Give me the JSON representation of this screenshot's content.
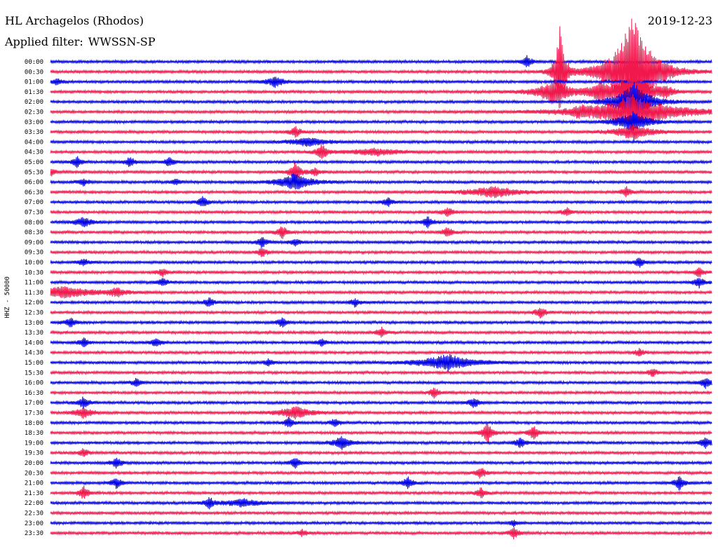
{
  "header": {
    "station": "HL Archagelos (Rhodos)",
    "filter_label": "Applied filter:",
    "filter_value": "WWSSN-SP",
    "date": "2019-12-23"
  },
  "chart_data": {
    "type": "line",
    "subtype": "helicorder",
    "ylabel": "HHZ - 50000",
    "row_labels": [
      "00:00",
      "00:30",
      "01:00",
      "01:30",
      "02:00",
      "02:30",
      "03:00",
      "03:30",
      "04:00",
      "04:30",
      "05:00",
      "05:30",
      "06:00",
      "06:30",
      "07:00",
      "07:30",
      "08:00",
      "08:30",
      "09:00",
      "09:30",
      "10:00",
      "10:30",
      "11:00",
      "11:30",
      "12:00",
      "12:30",
      "13:00",
      "13:30",
      "14:00",
      "14:30",
      "15:00",
      "15:30",
      "16:00",
      "16:30",
      "17:00",
      "17:30",
      "18:00",
      "18:30",
      "19:00",
      "19:30",
      "20:00",
      "20:30",
      "21:00",
      "21:30",
      "22:00",
      "22:30",
      "23:00",
      "23:30"
    ],
    "trace_colors": [
      "#0000e6",
      "#f0184c"
    ],
    "grid": false,
    "noise_amplitude": 2.2,
    "events": [
      {
        "row": 0,
        "t": 0.72,
        "amp": 9,
        "dur": 0.006
      },
      {
        "row": 1,
        "t": 0.77,
        "amp": 70,
        "dur": 0.006
      },
      {
        "row": 1,
        "t": 0.88,
        "amp": 85,
        "dur": 0.025
      },
      {
        "row": 2,
        "t": 0.34,
        "amp": 8,
        "dur": 0.01
      },
      {
        "row": 2,
        "t": 0.01,
        "amp": 5,
        "dur": 0.006
      },
      {
        "row": 3,
        "t": 0.76,
        "amp": 18,
        "dur": 0.02
      },
      {
        "row": 3,
        "t": 0.83,
        "amp": 12,
        "dur": 0.012
      },
      {
        "row": 3,
        "t": 0.88,
        "amp": 30,
        "dur": 0.02
      },
      {
        "row": 3,
        "t": 0.93,
        "amp": 6,
        "dur": 0.01
      },
      {
        "row": 4,
        "t": 0.88,
        "amp": 30,
        "dur": 0.02
      },
      {
        "row": 5,
        "t": 0.88,
        "amp": 24,
        "dur": 0.05
      },
      {
        "row": 5,
        "t": 0.8,
        "amp": 6,
        "dur": 0.008
      },
      {
        "row": 6,
        "t": 0.88,
        "amp": 14,
        "dur": 0.02
      },
      {
        "row": 7,
        "t": 0.37,
        "amp": 8,
        "dur": 0.006
      },
      {
        "row": 7,
        "t": 0.88,
        "amp": 12,
        "dur": 0.02
      },
      {
        "row": 8,
        "t": 0.39,
        "amp": 7,
        "dur": 0.02
      },
      {
        "row": 9,
        "t": 0.41,
        "amp": 12,
        "dur": 0.006
      },
      {
        "row": 9,
        "t": 0.49,
        "amp": 5,
        "dur": 0.03
      },
      {
        "row": 10,
        "t": 0.04,
        "amp": 8,
        "dur": 0.006
      },
      {
        "row": 10,
        "t": 0.12,
        "amp": 7,
        "dur": 0.006
      },
      {
        "row": 10,
        "t": 0.18,
        "amp": 7,
        "dur": 0.006
      },
      {
        "row": 11,
        "t": 0.0,
        "amp": 6,
        "dur": 0.006
      },
      {
        "row": 11,
        "t": 0.37,
        "amp": 16,
        "dur": 0.006
      },
      {
        "row": 11,
        "t": 0.4,
        "amp": 6,
        "dur": 0.006
      },
      {
        "row": 12,
        "t": 0.37,
        "amp": 12,
        "dur": 0.02
      },
      {
        "row": 12,
        "t": 0.05,
        "amp": 5,
        "dur": 0.006
      },
      {
        "row": 12,
        "t": 0.19,
        "amp": 5,
        "dur": 0.006
      },
      {
        "row": 13,
        "t": 0.67,
        "amp": 8,
        "dur": 0.03
      },
      {
        "row": 13,
        "t": 0.87,
        "amp": 7,
        "dur": 0.006
      },
      {
        "row": 14,
        "t": 0.23,
        "amp": 8,
        "dur": 0.006
      },
      {
        "row": 14,
        "t": 0.51,
        "amp": 6,
        "dur": 0.006
      },
      {
        "row": 15,
        "t": 0.6,
        "amp": 7,
        "dur": 0.006
      },
      {
        "row": 15,
        "t": 0.78,
        "amp": 6,
        "dur": 0.006
      },
      {
        "row": 16,
        "t": 0.05,
        "amp": 7,
        "dur": 0.01
      },
      {
        "row": 16,
        "t": 0.57,
        "amp": 8,
        "dur": 0.006
      },
      {
        "row": 17,
        "t": 0.6,
        "amp": 8,
        "dur": 0.006
      },
      {
        "row": 17,
        "t": 0.35,
        "amp": 9,
        "dur": 0.006
      },
      {
        "row": 18,
        "t": 0.32,
        "amp": 8,
        "dur": 0.006
      },
      {
        "row": 18,
        "t": 0.37,
        "amp": 6,
        "dur": 0.006
      },
      {
        "row": 19,
        "t": 0.32,
        "amp": 7,
        "dur": 0.006
      },
      {
        "row": 20,
        "t": 0.05,
        "amp": 6,
        "dur": 0.006
      },
      {
        "row": 20,
        "t": 0.89,
        "amp": 7,
        "dur": 0.006
      },
      {
        "row": 21,
        "t": 0.17,
        "amp": 6,
        "dur": 0.006
      },
      {
        "row": 21,
        "t": 0.98,
        "amp": 7,
        "dur": 0.006
      },
      {
        "row": 22,
        "t": 0.17,
        "amp": 7,
        "dur": 0.006
      },
      {
        "row": 22,
        "t": 0.98,
        "amp": 8,
        "dur": 0.006
      },
      {
        "row": 23,
        "t": 0.02,
        "amp": 8,
        "dur": 0.04
      },
      {
        "row": 23,
        "t": 0.1,
        "amp": 6,
        "dur": 0.01
      },
      {
        "row": 24,
        "t": 0.24,
        "amp": 7,
        "dur": 0.006
      },
      {
        "row": 24,
        "t": 0.46,
        "amp": 6,
        "dur": 0.006
      },
      {
        "row": 25,
        "t": 0.74,
        "amp": 9,
        "dur": 0.006
      },
      {
        "row": 26,
        "t": 0.03,
        "amp": 7,
        "dur": 0.006
      },
      {
        "row": 26,
        "t": 0.35,
        "amp": 7,
        "dur": 0.006
      },
      {
        "row": 27,
        "t": 0.5,
        "amp": 7,
        "dur": 0.006
      },
      {
        "row": 28,
        "t": 0.05,
        "amp": 7,
        "dur": 0.006
      },
      {
        "row": 28,
        "t": 0.16,
        "amp": 7,
        "dur": 0.006
      },
      {
        "row": 28,
        "t": 0.41,
        "amp": 5,
        "dur": 0.006
      },
      {
        "row": 29,
        "t": 0.89,
        "amp": 5,
        "dur": 0.006
      },
      {
        "row": 30,
        "t": 0.6,
        "amp": 12,
        "dur": 0.03
      },
      {
        "row": 30,
        "t": 0.33,
        "amp": 5,
        "dur": 0.006
      },
      {
        "row": 31,
        "t": 0.91,
        "amp": 6,
        "dur": 0.006
      },
      {
        "row": 32,
        "t": 0.13,
        "amp": 6,
        "dur": 0.006
      },
      {
        "row": 32,
        "t": 0.99,
        "amp": 8,
        "dur": 0.006
      },
      {
        "row": 33,
        "t": 0.58,
        "amp": 7,
        "dur": 0.006
      },
      {
        "row": 34,
        "t": 0.05,
        "amp": 9,
        "dur": 0.006
      },
      {
        "row": 34,
        "t": 0.64,
        "amp": 8,
        "dur": 0.006
      },
      {
        "row": 35,
        "t": 0.05,
        "amp": 8,
        "dur": 0.01
      },
      {
        "row": 35,
        "t": 0.37,
        "amp": 9,
        "dur": 0.02
      },
      {
        "row": 36,
        "t": 0.36,
        "amp": 7,
        "dur": 0.006
      },
      {
        "row": 36,
        "t": 0.43,
        "amp": 6,
        "dur": 0.006
      },
      {
        "row": 37,
        "t": 0.66,
        "amp": 16,
        "dur": 0.006
      },
      {
        "row": 37,
        "t": 0.73,
        "amp": 10,
        "dur": 0.006
      },
      {
        "row": 38,
        "t": 0.44,
        "amp": 10,
        "dur": 0.01
      },
      {
        "row": 38,
        "t": 0.71,
        "amp": 8,
        "dur": 0.006
      },
      {
        "row": 38,
        "t": 0.99,
        "amp": 9,
        "dur": 0.006
      },
      {
        "row": 39,
        "t": 0.05,
        "amp": 6,
        "dur": 0.006
      },
      {
        "row": 40,
        "t": 0.1,
        "amp": 8,
        "dur": 0.006
      },
      {
        "row": 40,
        "t": 0.37,
        "amp": 8,
        "dur": 0.006
      },
      {
        "row": 41,
        "t": 0.65,
        "amp": 9,
        "dur": 0.006
      },
      {
        "row": 42,
        "t": 0.1,
        "amp": 8,
        "dur": 0.006
      },
      {
        "row": 42,
        "t": 0.54,
        "amp": 9,
        "dur": 0.006
      },
      {
        "row": 42,
        "t": 0.95,
        "amp": 10,
        "dur": 0.006
      },
      {
        "row": 43,
        "t": 0.05,
        "amp": 10,
        "dur": 0.006
      },
      {
        "row": 43,
        "t": 0.65,
        "amp": 8,
        "dur": 0.006
      },
      {
        "row": 44,
        "t": 0.24,
        "amp": 8,
        "dur": 0.006
      },
      {
        "row": 44,
        "t": 0.29,
        "amp": 6,
        "dur": 0.02
      },
      {
        "row": 46,
        "t": 0.7,
        "amp": 4,
        "dur": 0.006
      },
      {
        "row": 47,
        "t": 0.38,
        "amp": 5,
        "dur": 0.006
      },
      {
        "row": 47,
        "t": 0.7,
        "amp": 8,
        "dur": 0.006
      }
    ]
  }
}
